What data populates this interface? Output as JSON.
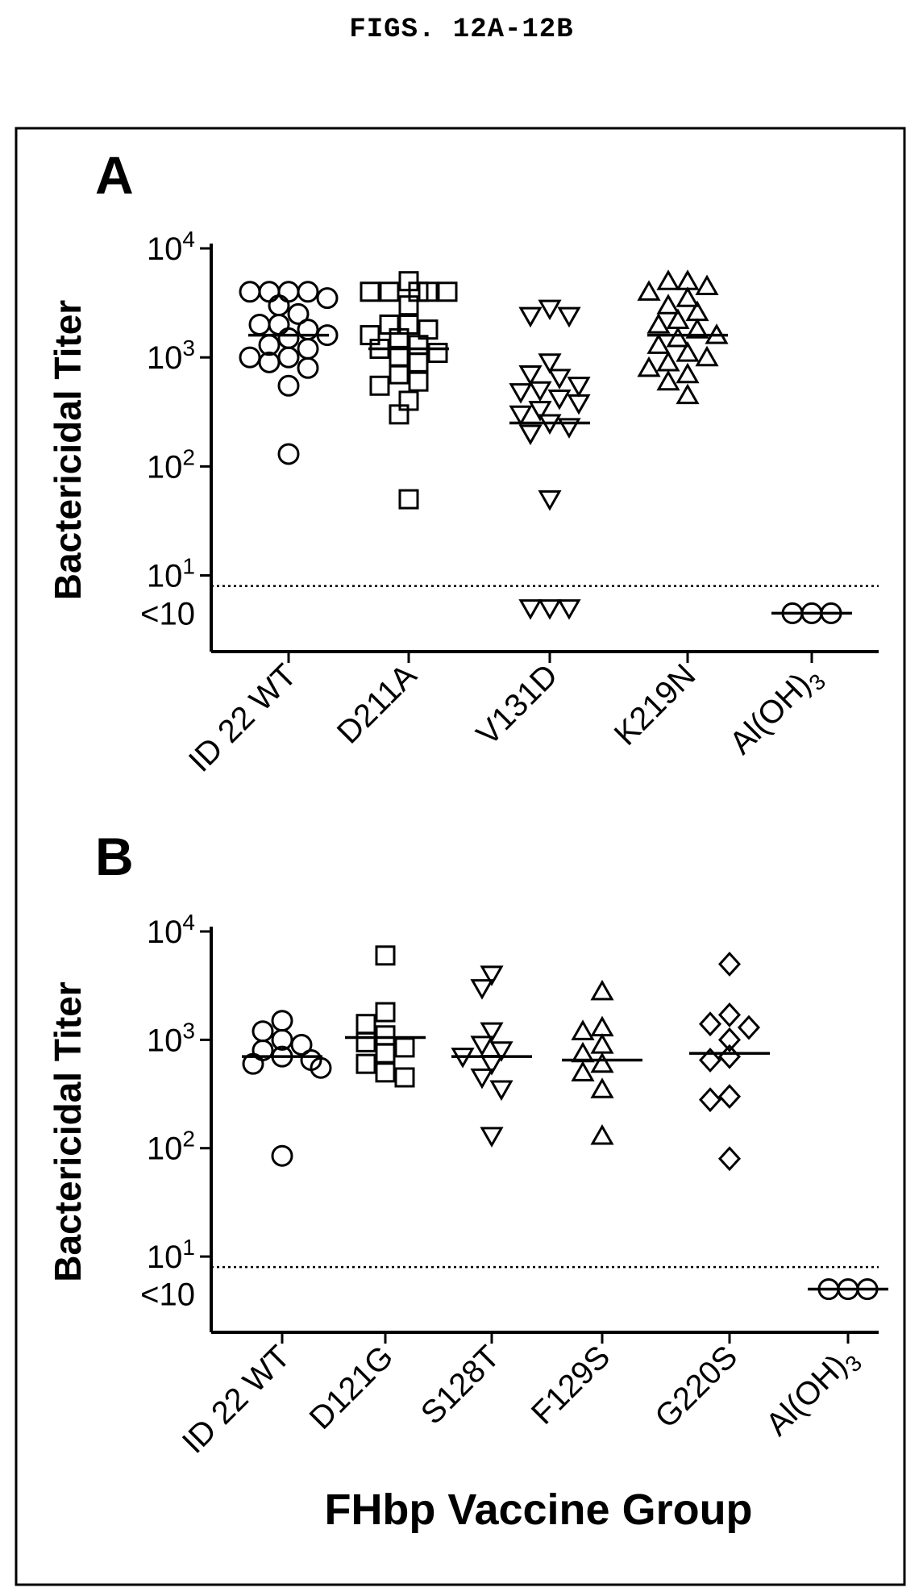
{
  "heading": "FIGS. 12A-12B",
  "chart_data": [
    {
      "type": "scatter",
      "panel_label": "A",
      "ylabel": "Bactericidal Titer",
      "xlabel": "",
      "yscale": "log",
      "ylim": [
        2,
        10000
      ],
      "yticks": [
        {
          "value": 10,
          "base": "10",
          "exp": "1"
        },
        {
          "value": 100,
          "base": "10",
          "exp": "2"
        },
        {
          "value": 1000,
          "base": "10",
          "exp": "3"
        },
        {
          "value": 10000,
          "base": "10",
          "exp": "4"
        }
      ],
      "below_detection_label": "<10",
      "detection_limit": 8,
      "categories": [
        {
          "label": "ID 22 WT",
          "sub": "",
          "marker": "circle",
          "values": [
            4000,
            4000,
            4000,
            4000,
            3500,
            3000,
            2500,
            2000,
            2000,
            1800,
            1600,
            1500,
            1300,
            1200,
            1000,
            1000,
            900,
            800,
            550,
            130
          ],
          "median": 1600
        },
        {
          "label": "D211A",
          "sub": "",
          "marker": "square",
          "values": [
            5000,
            4000,
            4000,
            4000,
            4000,
            4000,
            3000,
            2000,
            2000,
            1800,
            1600,
            1500,
            1300,
            1200,
            1100,
            1000,
            900,
            700,
            600,
            550,
            400,
            300,
            50
          ],
          "median": 1200
        },
        {
          "label": "V131D",
          "sub": "",
          "marker": "triangle-down",
          "values": [
            2800,
            2400,
            2400,
            900,
            700,
            650,
            550,
            500,
            480,
            420,
            380,
            330,
            300,
            250,
            230,
            200,
            50,
            5,
            5,
            5
          ],
          "median": 250
        },
        {
          "label": "K219N",
          "sub": "",
          "marker": "triangle-up",
          "values": [
            5000,
            5000,
            4500,
            4000,
            3500,
            3000,
            2600,
            2200,
            2000,
            1800,
            1600,
            1500,
            1300,
            1100,
            1000,
            900,
            800,
            700,
            600,
            450
          ],
          "median": 1600
        },
        {
          "label": "Al(OH)",
          "sub": "3",
          "marker": "circle",
          "values": [
            4.5,
            4.5,
            4.5
          ],
          "median": 4.5
        }
      ]
    },
    {
      "type": "scatter",
      "panel_label": "B",
      "ylabel": "Bactericidal Titer",
      "xlabel": "FHbp Vaccine Group",
      "yscale": "log",
      "ylim": [
        2,
        10000
      ],
      "yticks": [
        {
          "value": 10,
          "base": "10",
          "exp": "1"
        },
        {
          "value": 100,
          "base": "10",
          "exp": "2"
        },
        {
          "value": 1000,
          "base": "10",
          "exp": "3"
        },
        {
          "value": 10000,
          "base": "10",
          "exp": "4"
        }
      ],
      "below_detection_label": "<10",
      "detection_limit": 8,
      "categories": [
        {
          "label": "ID 22 WT",
          "sub": "",
          "marker": "circle",
          "values": [
            1500,
            1200,
            1000,
            900,
            800,
            700,
            650,
            600,
            550,
            85
          ],
          "median": 700
        },
        {
          "label": "D121G",
          "sub": "",
          "marker": "square",
          "values": [
            6000,
            1800,
            1400,
            1100,
            950,
            850,
            750,
            600,
            500,
            450
          ],
          "median": 1050
        },
        {
          "label": "S128T",
          "sub": "",
          "marker": "triangle-down",
          "values": [
            4000,
            3000,
            1200,
            900,
            800,
            700,
            600,
            450,
            350,
            130
          ],
          "median": 700
        },
        {
          "label": "F129S",
          "sub": "",
          "marker": "triangle-up",
          "values": [
            2800,
            1300,
            1200,
            900,
            750,
            600,
            500,
            350,
            130
          ],
          "median": 650
        },
        {
          "label": "G220S",
          "sub": "",
          "marker": "diamond",
          "values": [
            5000,
            1700,
            1400,
            1300,
            1000,
            700,
            650,
            300,
            280,
            80
          ],
          "median": 750
        },
        {
          "label": "Al(OH)",
          "sub": "3",
          "marker": "circle",
          "values": [
            5,
            5,
            5
          ],
          "median": 5
        }
      ]
    }
  ]
}
